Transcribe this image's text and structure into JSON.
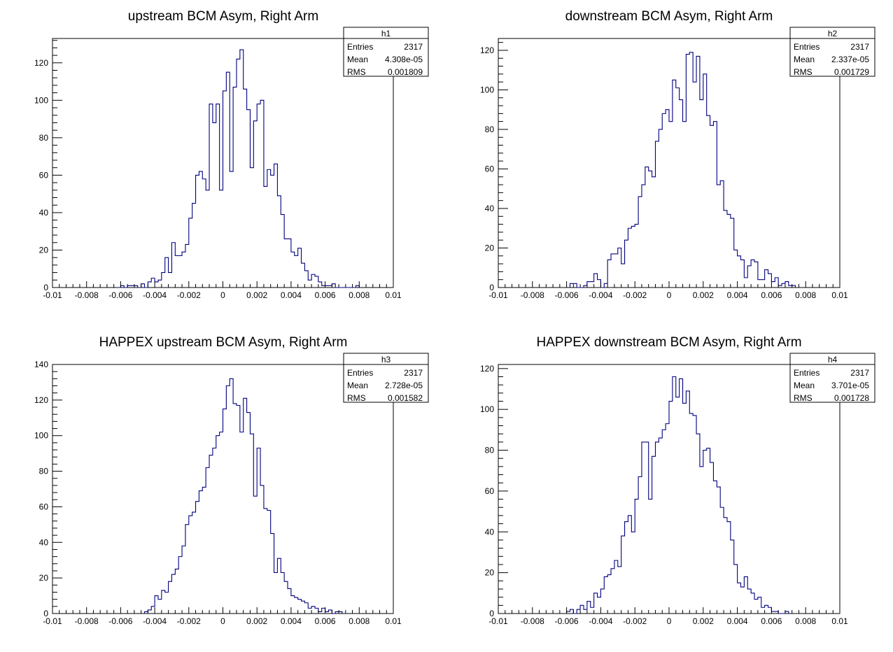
{
  "chart_data": [
    {
      "type": "bar",
      "title": "upstream BCM Asym, Right Arm",
      "stats": {
        "name": "h1",
        "entries_label": "Entries",
        "entries": "2317",
        "mean_label": "Mean",
        "mean": "4.308e-05",
        "rms_label": "RMS",
        "rms": "0.001809"
      },
      "xlim": [
        -0.01,
        0.01
      ],
      "ylim": [
        0,
        133
      ],
      "xticks": [
        "-0.01",
        "-0.008",
        "-0.006",
        "-0.004",
        "-0.002",
        "0",
        "0.002",
        "0.004",
        "0.006",
        "0.008",
        "0.01"
      ],
      "yticks": [
        "0",
        "20",
        "40",
        "60",
        "80",
        "100",
        "120"
      ],
      "bins_start": -0.0062,
      "bin_width": 0.0002,
      "values": [
        0,
        1,
        0,
        1,
        1,
        1,
        0,
        2,
        0,
        3,
        5,
        3,
        4,
        8,
        16,
        8,
        24,
        17,
        17,
        19,
        23,
        37,
        45,
        60,
        62,
        58,
        52,
        98,
        88,
        98,
        52,
        105,
        115,
        62,
        107,
        122,
        127,
        106,
        95,
        64,
        89,
        98,
        100,
        54,
        63,
        60,
        66,
        49,
        39,
        26,
        26,
        19,
        17,
        21,
        13,
        9,
        4,
        7,
        6,
        3,
        1,
        1,
        1,
        2,
        0,
        0,
        0,
        0,
        0,
        0,
        1
      ]
    },
    {
      "type": "bar",
      "title": "downstream BCM Asym, Right Arm",
      "stats": {
        "name": "h2",
        "entries_label": "Entries",
        "entries": "2317",
        "mean_label": "Mean",
        "mean": "2.337e-05",
        "rms_label": "RMS",
        "rms": "0.001729"
      },
      "xlim": [
        -0.01,
        0.01
      ],
      "ylim": [
        0,
        126
      ],
      "xticks": [
        "-0.01",
        "-0.008",
        "-0.006",
        "-0.004",
        "-0.002",
        "0",
        "0.002",
        "0.004",
        "0.006",
        "0.008",
        "0.01"
      ],
      "yticks": [
        "0",
        "20",
        "40",
        "60",
        "80",
        "100",
        "120"
      ],
      "bins_start": -0.0058,
      "bin_width": 0.0002,
      "values": [
        2,
        2,
        0,
        0,
        1,
        3,
        3,
        7,
        4,
        0,
        2,
        14,
        17,
        17,
        20,
        12,
        24,
        30,
        31,
        32,
        46,
        52,
        61,
        59,
        56,
        74,
        80,
        88,
        90,
        84,
        105,
        101,
        95,
        84,
        118,
        119,
        104,
        117,
        95,
        108,
        87,
        82,
        84,
        52,
        54,
        39,
        37,
        35,
        19,
        16,
        14,
        5,
        11,
        14,
        13,
        4,
        4,
        9,
        7,
        3,
        5,
        1,
        2,
        3,
        1,
        1
      ]
    },
    {
      "type": "bar",
      "title": "HAPPEX upstream BCM Asym, Right Arm",
      "stats": {
        "name": "h3",
        "entries_label": "Entries",
        "entries": "2317",
        "mean_label": "Mean",
        "mean": "2.728e-05",
        "rms_label": "RMS",
        "rms": "0.001582"
      },
      "xlim": [
        -0.01,
        0.01
      ],
      "ylim": [
        0,
        140
      ],
      "xticks": [
        "-0.01",
        "-0.008",
        "-0.006",
        "-0.004",
        "-0.002",
        "0",
        "0.002",
        "0.004",
        "0.006",
        "0.008",
        "0.01"
      ],
      "yticks": [
        "0",
        "20",
        "40",
        "60",
        "80",
        "100",
        "120",
        "140"
      ],
      "bins_start": -0.0046,
      "bin_width": 0.0002,
      "values": [
        1,
        2,
        4,
        10,
        8,
        13,
        12,
        18,
        22,
        25,
        32,
        38,
        50,
        55,
        57,
        63,
        69,
        71,
        82,
        89,
        93,
        100,
        102,
        115,
        128,
        132,
        118,
        117,
        102,
        121,
        113,
        101,
        66,
        93,
        72,
        59,
        58,
        45,
        23,
        31,
        23,
        18,
        14,
        10,
        9,
        8,
        7,
        6,
        3,
        4,
        3,
        1,
        3,
        1,
        2,
        0,
        1,
        1
      ]
    },
    {
      "type": "bar",
      "title": "HAPPEX downstream BCM Asym, Right Arm",
      "stats": {
        "name": "h4",
        "entries_label": "Entries",
        "entries": "2317",
        "mean_label": "Mean",
        "mean": "3.701e-05",
        "rms_label": "RMS",
        "rms": "0.001728"
      },
      "xlim": [
        -0.01,
        0.01
      ],
      "ylim": [
        0,
        122
      ],
      "xticks": [
        "-0.01",
        "-0.008",
        "-0.006",
        "-0.004",
        "-0.002",
        "0",
        "0.002",
        "0.004",
        "0.006",
        "0.008",
        "0.01"
      ],
      "yticks": [
        "0",
        "20",
        "40",
        "60",
        "80",
        "100",
        "120"
      ],
      "bins_start": -0.006,
      "bin_width": 0.0002,
      "values": [
        1,
        2,
        0,
        2,
        4,
        2,
        6,
        3,
        10,
        8,
        12,
        18,
        19,
        22,
        26,
        23,
        38,
        45,
        48,
        40,
        56,
        67,
        84,
        84,
        56,
        77,
        84,
        86,
        90,
        93,
        104,
        116,
        106,
        115,
        103,
        109,
        98,
        97,
        88,
        72,
        80,
        81,
        74,
        65,
        62,
        52,
        47,
        45,
        36,
        24,
        15,
        13,
        18,
        12,
        10,
        7,
        8,
        3,
        4,
        3,
        1,
        1,
        0,
        0,
        1
      ]
    }
  ]
}
